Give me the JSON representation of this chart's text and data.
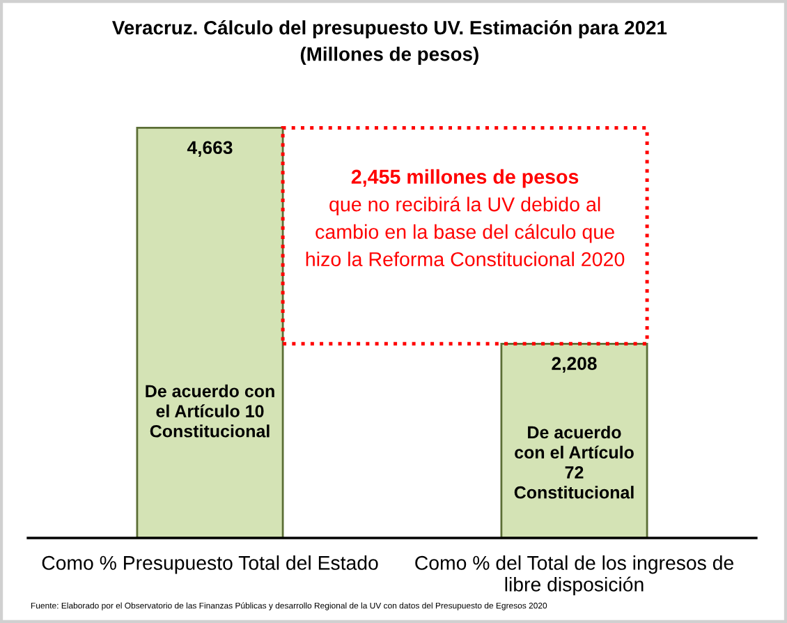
{
  "chart_data": {
    "type": "bar",
    "title": "Veracruz. Cálculo del presupuesto UV. Estimación para 2021",
    "subtitle": "(Millones de pesos)",
    "categories": [
      "Como % Presupuesto Total del Estado",
      "Como % del Total de los ingresos de\nlibre disposición"
    ],
    "values": [
      4663,
      2208
    ],
    "colors": [
      "#d4e3b5",
      "#d4e3b5"
    ],
    "value_labels": [
      "4,663",
      "2,208"
    ],
    "tick_labels": "x",
    "annotations": [
      "De acuerdo con\nel Artículo 10\nConstitucional",
      "De acuerdo\ncon el Artículo\n72\nConstitucional",
      "2,455 millones de pesos\nque no recibirá la UV debido al\ncambio en la base del cálculo que\nhizo la Reforma Constitucional 2020",
      "Fuente: Elaborado por el Observatorio de las Finanzas Públicas y desarrollo Regional de la UV con datos del Presupuesto de Egresos 2020"
    ]
  }
}
